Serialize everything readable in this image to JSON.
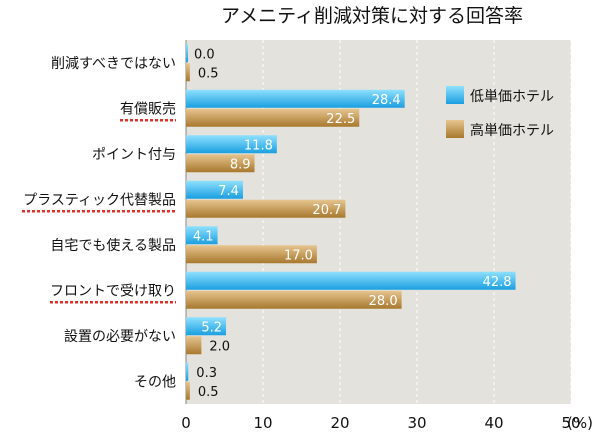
{
  "chart_data": {
    "type": "bar",
    "orientation": "horizontal",
    "title": "アメニティ削減対策に対する回答率",
    "xunit": "(%)",
    "xlim": [
      0,
      50
    ],
    "xticks": [
      "0",
      "10",
      "20",
      "30",
      "40",
      "50"
    ],
    "grid": "vertical dashed",
    "legend_position": "top-right",
    "categories": [
      {
        "label": "削減すべきではない",
        "underlined": false
      },
      {
        "label": "有償販売",
        "underlined": true
      },
      {
        "label": "ポイント付与",
        "underlined": false
      },
      {
        "label": "プラスティック代替製品",
        "underlined": true
      },
      {
        "label": "自宅でも使える製品",
        "underlined": false
      },
      {
        "label": "フロントで受け取り",
        "underlined": true
      },
      {
        "label": "設置の必要がない",
        "underlined": false
      },
      {
        "label": "その他",
        "underlined": false
      }
    ],
    "series": [
      {
        "name": "低単価ホテル",
        "color": "#1a9fe0",
        "color_light": "#8fe0ff",
        "values": [
          0.0,
          28.4,
          11.8,
          7.4,
          4.1,
          42.8,
          5.2,
          0.3
        ],
        "labels": [
          "0.0",
          "28.4",
          "11.8",
          "7.4",
          "4.1",
          "42.8",
          "5.2",
          "0.3"
        ]
      },
      {
        "name": "高単価ホテル",
        "color": "#a8782e",
        "color_light": "#e6c590",
        "values": [
          0.5,
          22.5,
          8.9,
          20.7,
          17.0,
          28.0,
          2.0,
          0.5
        ],
        "labels": [
          "0.5",
          "22.5",
          "8.9",
          "20.7",
          "17.0",
          "28.0",
          "2.0",
          "0.5"
        ]
      }
    ],
    "plot_background": "#e4e2dc",
    "underline_color": "#e0302a"
  }
}
